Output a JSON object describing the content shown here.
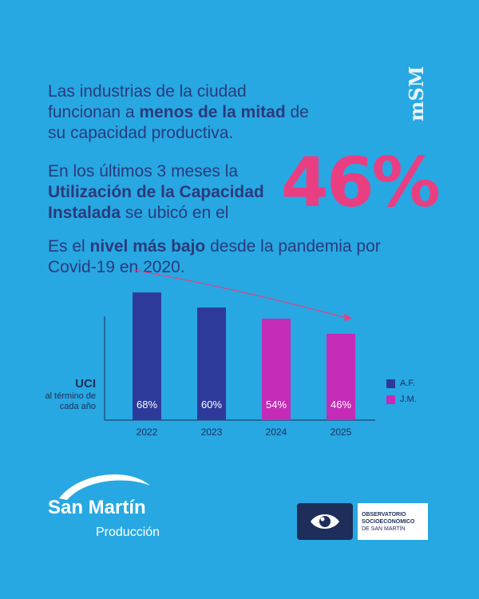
{
  "headline": {
    "p1_a": "Las industrias de la ciudad funcionan a ",
    "p1_b": "menos de la mitad",
    "p1_c": " de su capacidad productiva.",
    "p2_a": "En los últimos 3 meses la ",
    "p2_b": "Utilización de la Capacidad Instalada",
    "p2_c": " se ubicó en el",
    "big_value": "46%",
    "p3_a": "Es el ",
    "p3_b": "nivel más bajo",
    "p3_c": " desde la pandemia por Covid-19 en 2020."
  },
  "brand_mark": "mSM",
  "colors": {
    "background": "#27a8e2",
    "text_dark": "#2a3a7c",
    "accent_pink": "#ea3e82",
    "series_af": "#2e3a9a",
    "series_jm": "#c42bb6"
  },
  "chart_data": {
    "type": "bar",
    "ylabel": "UCI",
    "ylabel_sub": "al término de cada año",
    "categories": [
      "2022",
      "2023",
      "2024",
      "2025"
    ],
    "values": [
      68,
      60,
      54,
      46
    ],
    "data_labels": [
      "68%",
      "60%",
      "54%",
      "46%"
    ],
    "series_of_bar": [
      "A.F.",
      "A.F.",
      "J.M.",
      "J.M."
    ],
    "legend": [
      "A.F.",
      "J.M."
    ],
    "trend_arrow": "declining",
    "grid": false
  },
  "footer": {
    "logo_name": "San Martín",
    "logo_sub": "Producción",
    "obs_line1": "OBSERVATORIO",
    "obs_line2": "SOCIOECONÓMICO",
    "obs_line3": "DE SAN MARTÍN",
    "obs_icon": "eye-icon"
  }
}
